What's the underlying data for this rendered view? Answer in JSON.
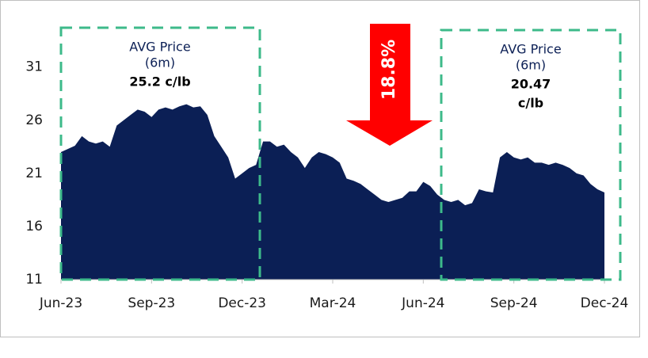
{
  "chart_data": {
    "type": "area",
    "color": "#0b1f55",
    "categories": [
      "Jun-23",
      null,
      null,
      null,
      null,
      null,
      null,
      null,
      null,
      null,
      null,
      null,
      null,
      "Sep-23",
      null,
      null,
      null,
      null,
      null,
      null,
      null,
      null,
      null,
      null,
      null,
      null,
      "Dec-23",
      null,
      null,
      null,
      null,
      null,
      null,
      null,
      null,
      null,
      null,
      null,
      null,
      "Mar-24",
      null,
      null,
      null,
      null,
      null,
      null,
      null,
      null,
      null,
      null,
      null,
      null,
      "Jun-24",
      null,
      null,
      null,
      null,
      null,
      null,
      null,
      null,
      null,
      null,
      null,
      null,
      "Sep-24",
      null,
      null,
      null,
      null,
      null,
      null,
      null,
      null,
      null,
      null,
      null,
      null,
      "Dec-24"
    ],
    "values": [
      23,
      23.3,
      23.6,
      24.5,
      24,
      23.8,
      24,
      23.5,
      25.5,
      26,
      26.5,
      27,
      26.8,
      26.3,
      27,
      27.2,
      27,
      27.3,
      27.5,
      27.2,
      27.3,
      26.5,
      24.5,
      23.5,
      22.5,
      20.5,
      21,
      21.5,
      21.8,
      24,
      24,
      23.5,
      23.7,
      23,
      22.5,
      21.5,
      22.5,
      23,
      22.8,
      22.5,
      22,
      20.5,
      20.3,
      20,
      19.5,
      19,
      18.5,
      18.3,
      18.5,
      18.7,
      19.3,
      19.3,
      20.2,
      19.8,
      19,
      18.5,
      18.3,
      18.5,
      18,
      18.2,
      19.5,
      19.3,
      19.2,
      22.5,
      23,
      22.5,
      22.3,
      22.5,
      22,
      22,
      21.8,
      22,
      21.8,
      21.5,
      21,
      20.8,
      20,
      19.5,
      19.2
    ],
    "ylim": [
      11,
      35
    ],
    "yticks": [
      11,
      16,
      21,
      26,
      31
    ],
    "annotations": [
      {
        "lines": [
          "AVG Price",
          "(6m)",
          "25.2 c/lb"
        ]
      },
      {
        "lines": [
          "AVG Price",
          "(6m)",
          "20.47",
          "c/lb"
        ]
      }
    ],
    "arrow_label": "18.8%"
  }
}
